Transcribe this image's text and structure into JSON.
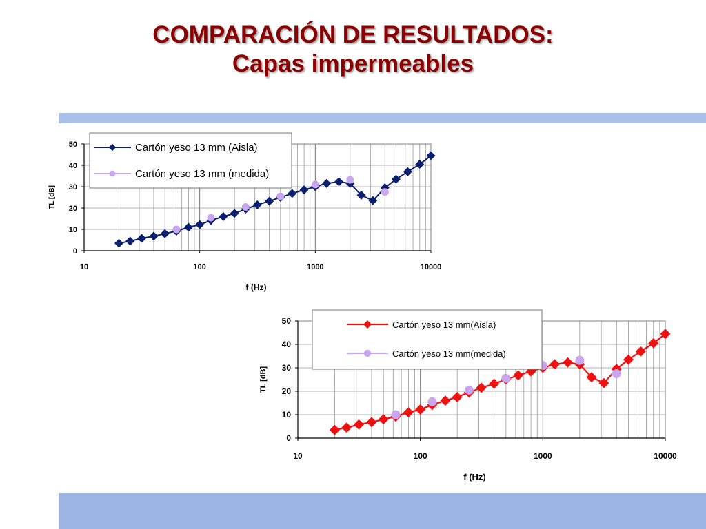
{
  "slide": {
    "title": "COMPARACIÓN DE RESULTADOS:",
    "subtitle": "Capas impermeables"
  },
  "chart_data": [
    {
      "type": "line",
      "xlabel": "f (Hz)",
      "ylabel": "TL [dB]",
      "x_scale": "log",
      "xlim": [
        10,
        10000
      ],
      "ylim": [
        0,
        50
      ],
      "y_ticks": [
        "0",
        "10",
        "20",
        "30",
        "40",
        "50"
      ],
      "x_ticks": [
        "10",
        "100",
        "1000",
        "10000"
      ],
      "grid": true,
      "legend_position": "top-left",
      "series": [
        {
          "name": "Cartón yeso 13 mm (Aisla)",
          "color": "#0a1f6e",
          "marker": "diamond",
          "x": [
            20,
            25,
            31.5,
            40,
            50,
            63,
            80,
            100,
            125,
            160,
            200,
            250,
            315,
            400,
            500,
            630,
            800,
            1000,
            1250,
            1600,
            2000,
            2500,
            3150,
            4000,
            5000,
            6300,
            8000,
            10000
          ],
          "y": [
            3.5,
            4.5,
            5.8,
            6.8,
            8,
            9.2,
            11,
            12.2,
            14.2,
            16,
            17.5,
            19.5,
            21.5,
            23.2,
            25,
            26.8,
            28.5,
            30,
            31.5,
            32.3,
            31.5,
            26,
            23.5,
            29.5,
            33.5,
            37,
            40.5,
            44.5
          ]
        },
        {
          "name": "Cartón yeso 13 mm (medida)",
          "color": "#c9a6ee",
          "marker": "circle",
          "x": [
            63,
            125,
            250,
            500,
            1000,
            2000,
            4000
          ],
          "y": [
            10,
            15.5,
            20.5,
            25.5,
            31,
            33.2,
            27.5
          ]
        }
      ]
    },
    {
      "type": "line",
      "xlabel": "f (Hz)",
      "ylabel": "TL [dB]",
      "x_scale": "log",
      "xlim": [
        10,
        10000
      ],
      "ylim": [
        0,
        50
      ],
      "y_ticks": [
        "0",
        "10",
        "20",
        "30",
        "40",
        "50"
      ],
      "x_ticks": [
        "10",
        "100",
        "1000",
        "10000"
      ],
      "grid": true,
      "legend_position": "top-left",
      "series": [
        {
          "name": "Cartón yeso 13 mm(Aisla)",
          "color": "#ee1111",
          "marker": "diamond",
          "x": [
            20,
            25,
            31.5,
            40,
            50,
            63,
            80,
            100,
            125,
            160,
            200,
            250,
            315,
            400,
            500,
            630,
            800,
            1000,
            1250,
            1600,
            2000,
            2500,
            3150,
            4000,
            5000,
            6300,
            8000,
            10000
          ],
          "y": [
            3.5,
            4.5,
            5.8,
            6.8,
            8,
            9.2,
            11,
            12.2,
            14.2,
            16,
            17.5,
            19.5,
            21.5,
            23.2,
            25,
            26.8,
            28.5,
            30,
            31.5,
            32.3,
            31.5,
            26,
            23.5,
            29.5,
            33.5,
            37,
            40.5,
            44.5
          ]
        },
        {
          "name": "Cartón yeso 13 mm(medida)",
          "color": "#c9a6ee",
          "marker": "circle",
          "x": [
            63,
            125,
            250,
            500,
            1000,
            2000,
            4000
          ],
          "y": [
            10,
            15.5,
            20.5,
            25.5,
            31,
            33.2,
            27.5
          ]
        }
      ]
    }
  ]
}
